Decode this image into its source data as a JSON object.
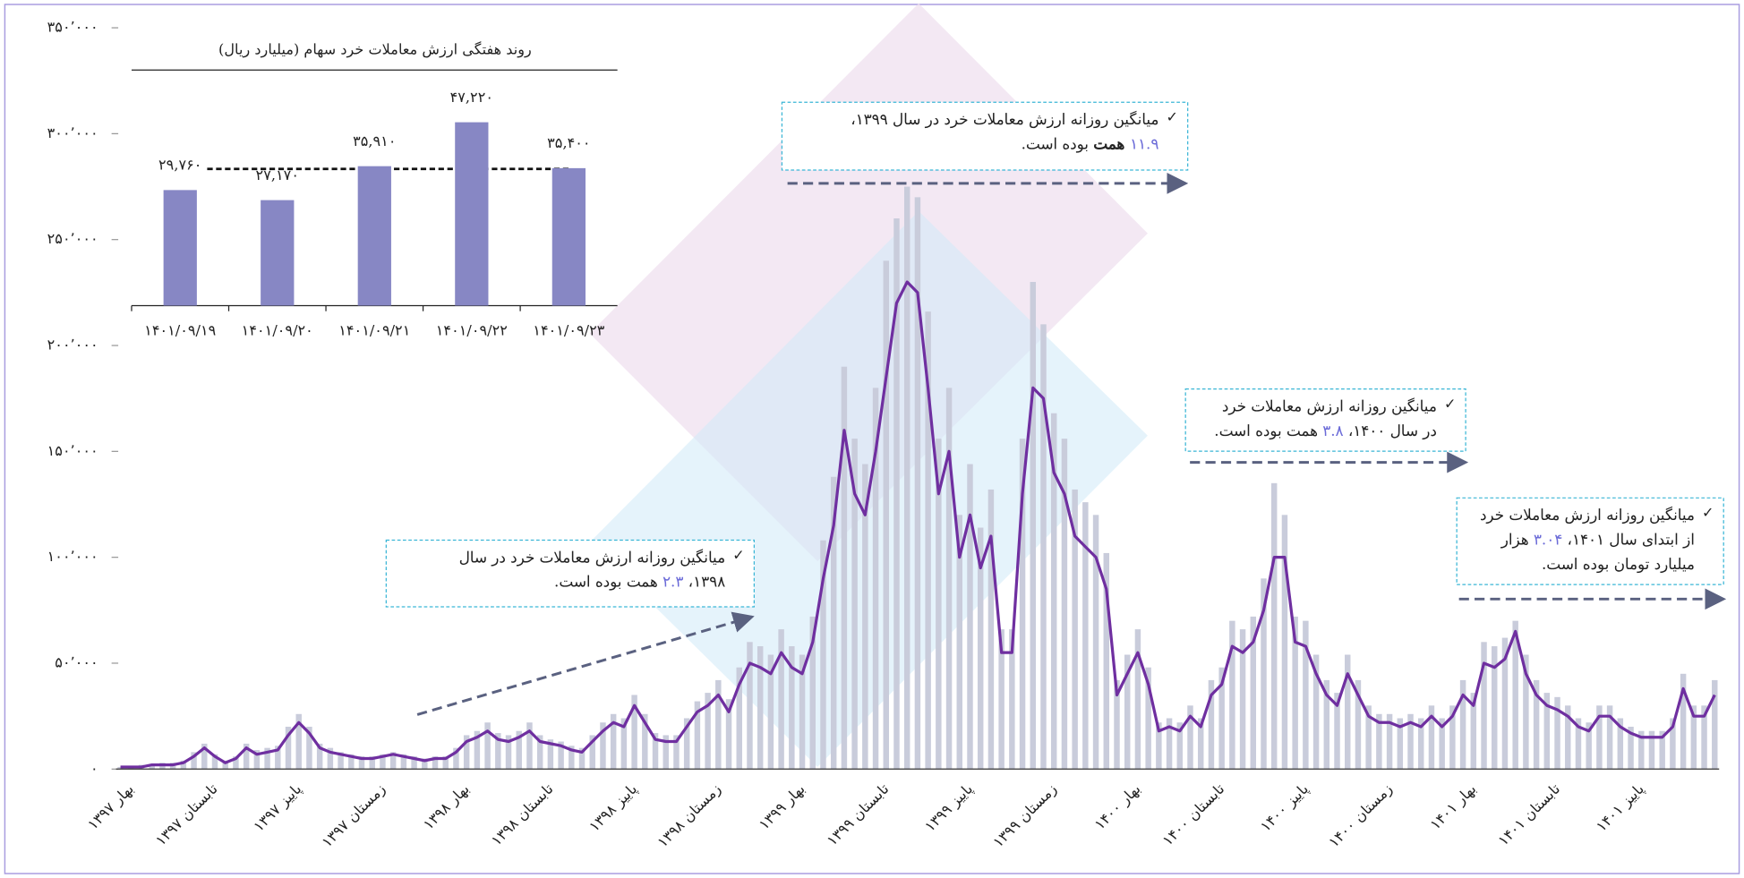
{
  "chart_data": [
    {
      "type": "combo",
      "categories": [
        "بهار ۱۳۹۷",
        null,
        null,
        null,
        null,
        null,
        null,
        null,
        "تابستان ۱۳۹۷",
        null,
        null,
        null,
        null,
        null,
        null,
        null,
        "پاییز ۱۳۹۷",
        null,
        null,
        null,
        null,
        null,
        null,
        null,
        "زمستان ۱۳۹۷",
        null,
        null,
        null,
        null,
        null,
        null,
        null,
        "بهار ۱۳۹۸",
        null,
        null,
        null,
        null,
        null,
        null,
        null,
        "تابستان ۱۳۹۸",
        null,
        null,
        null,
        null,
        null,
        null,
        null,
        "پاییز ۱۳۹۸",
        null,
        null,
        null,
        null,
        null,
        null,
        null,
        "زمستان ۱۳۹۸",
        null,
        null,
        null,
        null,
        null,
        null,
        null,
        "بهار ۱۳۹۹",
        null,
        null,
        null,
        null,
        null,
        null,
        null,
        "تابستان ۱۳۹۹",
        null,
        null,
        null,
        null,
        null,
        null,
        null,
        "پاییز ۱۳۹۹",
        null,
        null,
        null,
        null,
        null,
        null,
        null,
        "زمستان ۱۳۹۹",
        null,
        null,
        null,
        null,
        null,
        null,
        null,
        "بهار ۱۴۰۰",
        null,
        null,
        null,
        null,
        null,
        null,
        null,
        "تابستان ۱۴۰۰",
        null,
        null,
        null,
        null,
        null,
        null,
        null,
        "پاییز ۱۴۰۰",
        null,
        null,
        null,
        null,
        null,
        null,
        null,
        "زمستان ۱۴۰۰",
        null,
        null,
        null,
        null,
        null,
        null,
        null,
        "بهار ۱۴۰۱",
        null,
        null,
        null,
        null,
        null,
        null,
        null,
        "تابستان ۱۴۰۱",
        null,
        null,
        null,
        null,
        null,
        null,
        null,
        "پاییز ۱۴۰۱",
        null,
        null,
        null,
        null,
        null,
        null,
        null,
        null
      ],
      "series": [
        {
          "type": "bar",
          "color": "#c9ccdb",
          "values": [
            1000,
            1000,
            2000,
            2000,
            3000,
            3000,
            4000,
            8000,
            12000,
            7000,
            4000,
            6000,
            12000,
            9000,
            10000,
            11000,
            20000,
            26000,
            20000,
            12000,
            10000,
            8000,
            7000,
            6000,
            6000,
            7000,
            8000,
            7000,
            6000,
            5000,
            6000,
            6000,
            10000,
            16000,
            18000,
            22000,
            17000,
            16000,
            18000,
            22000,
            16000,
            14000,
            13000,
            11000,
            10000,
            16000,
            22000,
            26000,
            24000,
            35000,
            26000,
            17000,
            16000,
            16000,
            24000,
            32000,
            36000,
            42000,
            33000,
            48000,
            60000,
            58000,
            54000,
            66000,
            58000,
            54000,
            72000,
            108000,
            138000,
            190000,
            156000,
            144000,
            180000,
            240000,
            260000,
            275000,
            270000,
            216000,
            156000,
            180000,
            120000,
            144000,
            114000,
            132000,
            66000,
            66000,
            156000,
            230000,
            210000,
            168000,
            156000,
            132000,
            126000,
            120000,
            102000,
            42000,
            54000,
            66000,
            48000,
            22000,
            24000,
            22000,
            30000,
            24000,
            42000,
            48000,
            70000,
            66000,
            72000,
            90000,
            135000,
            120000,
            72000,
            70000,
            54000,
            42000,
            36000,
            54000,
            42000,
            30000,
            26000,
            26000,
            24000,
            26000,
            24000,
            30000,
            24000,
            30000,
            42000,
            36000,
            60000,
            58000,
            62000,
            70000,
            54000,
            42000,
            36000,
            34000,
            30000,
            24000,
            22000,
            30000,
            30000,
            24000,
            20000,
            18000,
            18000,
            18000,
            24000,
            45000,
            30000,
            30000,
            42000
          ]
        },
        {
          "type": "line",
          "color": "#6f2fa0",
          "values": [
            1000,
            1000,
            1000,
            2000,
            2000,
            2000,
            3000,
            6000,
            10000,
            6000,
            3000,
            5000,
            10000,
            7000,
            8000,
            9000,
            16000,
            22000,
            17000,
            10000,
            8000,
            7000,
            6000,
            5000,
            5000,
            6000,
            7000,
            6000,
            5000,
            4000,
            5000,
            5000,
            8000,
            13000,
            15000,
            18000,
            14000,
            13000,
            15000,
            18000,
            13000,
            12000,
            11000,
            9000,
            8000,
            13000,
            18000,
            22000,
            20000,
            30000,
            22000,
            14000,
            13000,
            13000,
            20000,
            27000,
            30000,
            35000,
            27000,
            40000,
            50000,
            48000,
            45000,
            55000,
            48000,
            45000,
            60000,
            90000,
            115000,
            160000,
            130000,
            120000,
            150000,
            185000,
            220000,
            230000,
            225000,
            180000,
            130000,
            150000,
            100000,
            120000,
            95000,
            110000,
            55000,
            55000,
            130000,
            180000,
            175000,
            140000,
            130000,
            110000,
            105000,
            100000,
            85000,
            35000,
            45000,
            55000,
            40000,
            18000,
            20000,
            18000,
            25000,
            20000,
            35000,
            40000,
            58000,
            55000,
            60000,
            75000,
            100000,
            100000,
            60000,
            58000,
            45000,
            35000,
            30000,
            45000,
            35000,
            25000,
            22000,
            22000,
            20000,
            22000,
            20000,
            25000,
            20000,
            25000,
            35000,
            30000,
            50000,
            48000,
            52000,
            65000,
            45000,
            35000,
            30000,
            28000,
            25000,
            20000,
            18000,
            25000,
            25000,
            20000,
            17000,
            15000,
            15000,
            15000,
            20000,
            38000,
            25000,
            25000,
            35000
          ]
        }
      ],
      "ylim": [
        0,
        350000
      ],
      "yticks": [
        {
          "value": 0,
          "label": "۰"
        },
        {
          "value": 50000,
          "label": "۵۰٬۰۰۰"
        },
        {
          "value": 100000,
          "label": "۱۰۰٬۰۰۰"
        },
        {
          "value": 150000,
          "label": "۱۵۰٬۰۰۰"
        },
        {
          "value": 200000,
          "label": "۲۰۰٬۰۰۰"
        },
        {
          "value": 250000,
          "label": "۲۵۰٬۰۰۰"
        },
        {
          "value": 300000,
          "label": "۳۰۰٬۰۰۰"
        },
        {
          "value": 350000,
          "label": "۳۵۰٬۰۰۰"
        }
      ],
      "annotations": [
        {
          "lines": [
            [
              {
                "text": "میانگین روزانه ارزش معاملات خرد در سال"
              }
            ],
            [
              {
                "text": "۱۳۹۸، "
              },
              {
                "text": "۲.۳",
                "highlight": true
              },
              {
                "text": " همت بوده است."
              }
            ]
          ]
        },
        {
          "lines": [
            [
              {
                "text": "میانگین روزانه ارزش معاملات خرد در سال ۱۳۹۹،"
              }
            ],
            [
              {
                "text": "۱۱.۹",
                "highlight": true
              },
              {
                "text": " همت",
                "bold": true
              },
              {
                "text": " بوده است."
              }
            ]
          ]
        },
        {
          "lines": [
            [
              {
                "text": "میانگین روزانه ارزش معاملات خرد"
              }
            ],
            [
              {
                "text": "در سال ۱۴۰۰، "
              },
              {
                "text": "۳.۸",
                "highlight": true
              },
              {
                "text": " همت بوده است."
              }
            ]
          ]
        },
        {
          "lines": [
            [
              {
                "text": "میانگین روزانه ارزش معاملات خرد"
              }
            ],
            [
              {
                "text": "از ابتدای سال ۱۴۰۱، "
              },
              {
                "text": "۳.۰۴",
                "highlight": true
              },
              {
                "text": " هزار"
              }
            ],
            [
              {
                "text": "میلیارد تومان بوده است."
              }
            ]
          ]
        }
      ],
      "highlight_color": "#6b6bd8"
    },
    {
      "type": "bar",
      "title": "روند هفتگی ارزش معاملات خرد سهام (میلیارد ریال)",
      "categories": [
        "۱۴۰۱/۰۹/۱۹",
        "۱۴۰۱/۰۹/۲۰",
        "۱۴۰۱/۰۹/۲۱",
        "۱۴۰۱/۰۹/۲۲",
        "۱۴۰۱/۰۹/۲۳"
      ],
      "values": [
        29760,
        27170,
        35910,
        47220,
        35400
      ],
      "value_labels": [
        "۲۹,۷۶۰",
        "۲۷,۱۷۰",
        "۳۵,۹۱۰",
        "۴۷,۲۲۰",
        "۳۵,۴۰۰"
      ],
      "color": "#8787c4",
      "ylim": [
        0,
        50000
      ]
    }
  ]
}
